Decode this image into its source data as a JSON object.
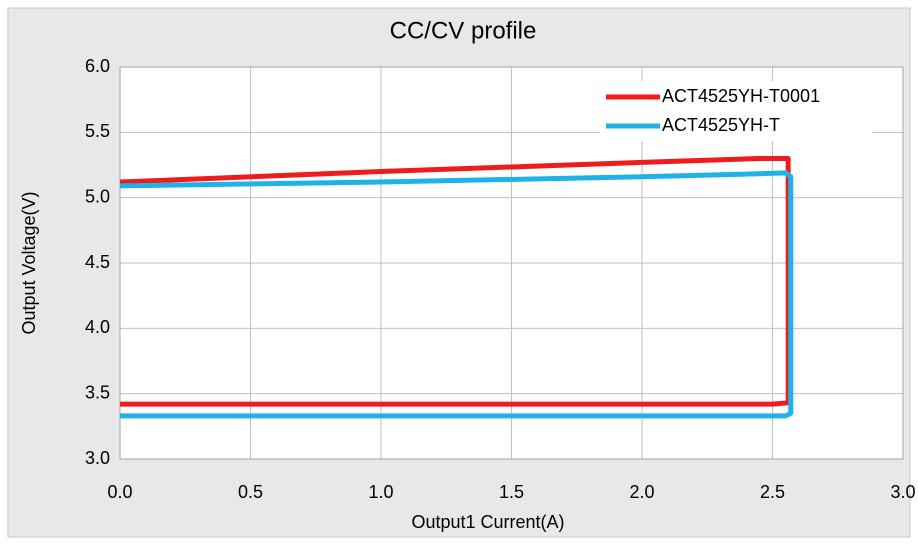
{
  "chart_data": {
    "type": "line",
    "title": "CC/CV profile",
    "x_label": "Output1 Current(A)",
    "y_label": "Output Voltage(V)",
    "xlim": [
      0,
      3
    ],
    "ylim": [
      3,
      6
    ],
    "xticks": [
      {
        "value": 0,
        "label": "0.0"
      },
      {
        "value": 0.5,
        "label": "0.5"
      },
      {
        "value": 1,
        "label": "1.0"
      },
      {
        "value": 1.5,
        "label": "1.5"
      },
      {
        "value": 2,
        "label": "2.0"
      },
      {
        "value": 2.5,
        "label": "2.5"
      },
      {
        "value": 3,
        "label": "3.0"
      }
    ],
    "yticks": [
      {
        "value": 3,
        "label": "3.0"
      },
      {
        "value": 3.5,
        "label": "3.5"
      },
      {
        "value": 4,
        "label": "4.0"
      },
      {
        "value": 4.5,
        "label": "4.5"
      },
      {
        "value": 5,
        "label": "5.0"
      },
      {
        "value": 5.5,
        "label": "5.5"
      },
      {
        "value": 6,
        "label": "6.0"
      }
    ],
    "grid": true,
    "legend": "upper right",
    "series": [
      {
        "name": "ACT4525YH-T0001",
        "color": "#ee1c1c",
        "x": [
          0,
          1,
          2,
          2.45,
          2.56,
          2.56,
          2.5,
          0
        ],
        "values": [
          5.12,
          5.2,
          5.27,
          5.3,
          5.3,
          3.43,
          3.42,
          3.42
        ]
      },
      {
        "name": "ACT4525YH-T",
        "color": "#1fb2e8",
        "x": [
          0,
          1,
          2,
          2.4,
          2.55,
          2.57,
          2.57,
          2.55,
          0
        ],
        "values": [
          5.09,
          5.12,
          5.16,
          5.18,
          5.19,
          5.16,
          3.35,
          3.33,
          3.33
        ]
      }
    ]
  }
}
